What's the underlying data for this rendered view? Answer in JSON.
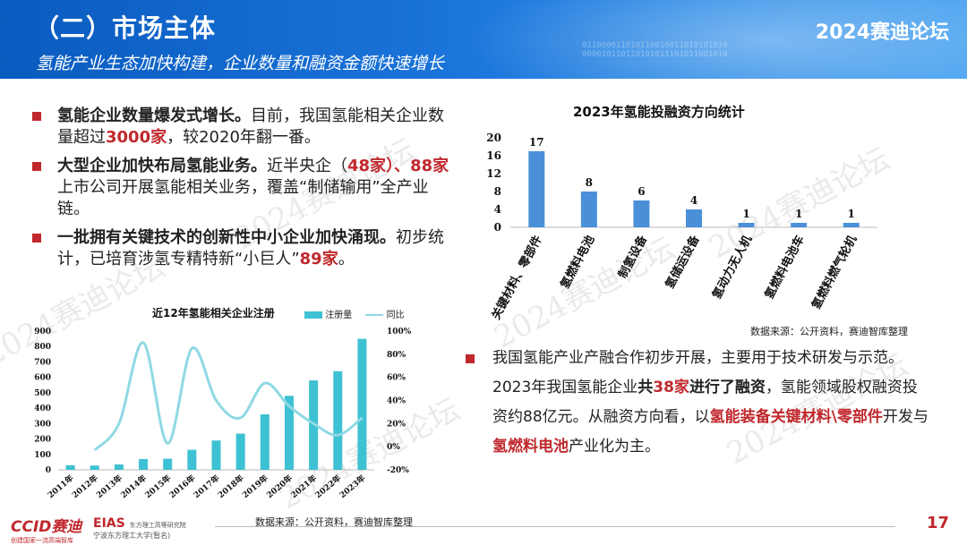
{
  "header": {
    "title": "（二）市场主体",
    "brand": "2024赛迪论坛",
    "subtitle": "氢能产业生态加快构建，企业数量和融资金额快速增长",
    "binary": "011000011010110010011010101010\n000010110110101011101011001010"
  },
  "bullets": [
    {
      "lead": "氢能企业数量爆发式增长。",
      "t1": "目前，我国氢能相关企业数量超过",
      "h1": "3000家",
      "t2": "，较2020年翻一番。"
    },
    {
      "lead": "大型企业加快布局氢能业务。",
      "t1": "近半央企（",
      "h1": "48家",
      "t2": "）、",
      "h2": "88家",
      "t3": "上市公司开展氢能相关业务，覆盖“制储输用”全产业链。"
    },
    {
      "lead": "一批拥有关键技术的创新性中小企业加快涌现。",
      "t1": "初步统计，已培育涉氢专精特新“小巨人”",
      "h1": "89家",
      "t2": "。"
    }
  ],
  "right_bullet": {
    "t1": "我国氢能产业产融合作初步开展，主要用于技术研发与示范。2023年我国氢能企业",
    "b1": "共",
    "h1": "38家",
    "b2": "进行了融资",
    "t2": "，氢能领域股权融资投资约88亿元。从融资方向看，以",
    "h2": "氢能装备关键材料\\零部件",
    "t3": "开发与",
    "h3": "氢燃料电池",
    "t4": "产业化为主。"
  },
  "chart_data": [
    {
      "type": "bar",
      "title": "2023年氢能投融资方向统计",
      "categories": [
        "关键材料、零部件",
        "氢燃料电池",
        "制氢设备",
        "氢储运设备",
        "氢动力无人机",
        "氢燃料电池车",
        "氢燃料燃气轮机"
      ],
      "values": [
        17,
        8,
        6,
        4,
        1,
        1,
        1
      ],
      "ylim": [
        0,
        20
      ],
      "yticks": [
        0,
        4,
        8,
        12,
        16,
        20
      ],
      "color": "#4a90d9",
      "source": "数据来源：公开资料，赛迪智库整理"
    },
    {
      "type": "bar+line",
      "title": "近12年氢能相关企业注册",
      "categories": [
        "2011年",
        "2012年",
        "2013年",
        "2014年",
        "2015年",
        "2016年",
        "2017年",
        "2018年",
        "2019年",
        "2020年",
        "2021年",
        "2022年",
        "2023年"
      ],
      "series": [
        {
          "name": "注册量",
          "type": "bar",
          "axis": "left",
          "color": "#3ec1d3",
          "values": [
            30,
            28,
            35,
            70,
            72,
            130,
            190,
            235,
            360,
            480,
            580,
            640,
            850
          ]
        },
        {
          "name": "同比",
          "type": "line",
          "axis": "right",
          "color": "#8fd9e3",
          "values": [
            null,
            -3,
            20,
            90,
            3,
            85,
            40,
            25,
            55,
            35,
            20,
            10,
            25
          ]
        }
      ],
      "ylim_left": [
        0,
        900
      ],
      "yticks_left": [
        0,
        100,
        200,
        300,
        400,
        500,
        600,
        700,
        800,
        900
      ],
      "ylim_right": [
        -20,
        100
      ],
      "yticks_right": [
        "-20%",
        "0%",
        "20%",
        "40%",
        "60%",
        "80%",
        "100%"
      ],
      "legend_position": "top-right",
      "source": "数据来源：公开资料，赛迪智库整理"
    }
  ],
  "watermark": "2024赛迪论坛",
  "footer": {
    "logo1": "CCID赛迪",
    "logo1_sub": "创建国家一流高端智库",
    "logo2": "EIAS",
    "logo2_sub": "东方理工高等研究院",
    "logo2_sub2": "宁波东方理工大学(暂名)",
    "page": "17"
  }
}
